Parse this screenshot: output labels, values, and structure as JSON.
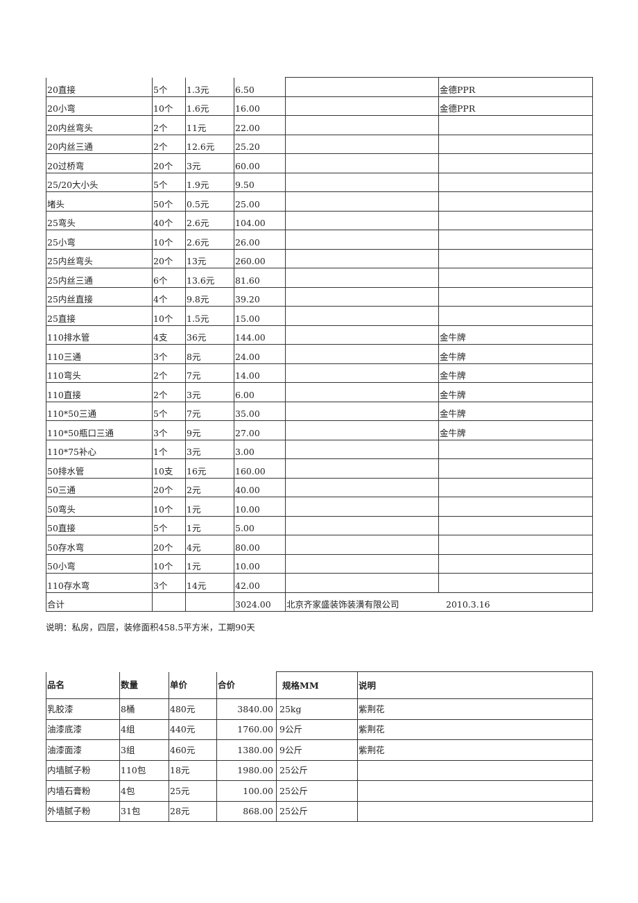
{
  "table1": {
    "rows": [
      [
        "20直接",
        "5个",
        "1.3元",
        "6.50",
        "",
        "金德PPR"
      ],
      [
        "20小弯",
        "10个",
        "1.6元",
        "16.00",
        "",
        "金德PPR"
      ],
      [
        "20内丝弯头",
        "2个",
        "11元",
        "22.00",
        "",
        ""
      ],
      [
        "20内丝三通",
        "2个",
        "12.6元",
        "25.20",
        "",
        ""
      ],
      [
        "20过桥弯",
        "20个",
        "3元",
        "60.00",
        "",
        ""
      ],
      [
        "25/20大小头",
        "5个",
        "1.9元",
        "9.50",
        "",
        ""
      ],
      [
        "堵头",
        "50个",
        "0.5元",
        "25.00",
        "",
        ""
      ],
      [
        "25弯头",
        "40个",
        "2.6元",
        "104.00",
        "",
        ""
      ],
      [
        "25小弯",
        "10个",
        "2.6元",
        "26.00",
        "",
        ""
      ],
      [
        "25内丝弯头",
        "20个",
        "13元",
        "260.00",
        "",
        ""
      ],
      [
        "25内丝三通",
        "6个",
        "13.6元",
        "81.60",
        "",
        ""
      ],
      [
        "25内丝直接",
        "4个",
        "9.8元",
        "39.20",
        "",
        ""
      ],
      [
        "25直接",
        "10个",
        "1.5元",
        "15.00",
        "",
        ""
      ],
      [
        "110排水管",
        "4支",
        "36元",
        "144.00",
        "",
        "金牛牌"
      ],
      [
        "110三通",
        "3个",
        "8元",
        "24.00",
        "",
        "金牛牌"
      ],
      [
        "110弯头",
        "2个",
        "7元",
        "14.00",
        "",
        "金牛牌"
      ],
      [
        "110直接",
        "2个",
        "3元",
        "6.00",
        "",
        "金牛牌"
      ],
      [
        "110*50三通",
        "5个",
        "7元",
        "35.00",
        "",
        "金牛牌"
      ],
      [
        "110*50瓶口三通",
        "3个",
        "9元",
        "27.00",
        "",
        "金牛牌"
      ],
      [
        "110*75补心",
        "1个",
        "3元",
        "3.00",
        "",
        ""
      ],
      [
        "50排水管",
        "10支",
        "16元",
        "160.00",
        "",
        ""
      ],
      [
        "50三通",
        "20个",
        "2元",
        "40.00",
        "",
        ""
      ],
      [
        "50弯头",
        "10个",
        "1元",
        "10.00",
        "",
        ""
      ],
      [
        "50直接",
        "5个",
        "1元",
        "5.00",
        "",
        ""
      ],
      [
        "50存水弯",
        "20个",
        "4元",
        "80.00",
        "",
        ""
      ],
      [
        "50小弯",
        "10个",
        "1元",
        "10.00",
        "",
        ""
      ],
      [
        "110存水弯",
        "3个",
        "14元",
        "42.00",
        "",
        ""
      ]
    ],
    "total": {
      "label": "合计",
      "amount": "3024.00",
      "company": "北京齐家盛装饰装潢有限公司",
      "date": "2010.3.16"
    }
  },
  "note": "说明：私房，四层，装修面积458.5平方米，工期90天",
  "table2": {
    "headers": [
      "品名",
      "数量",
      "单价",
      "合价",
      "规格MM",
      "说明"
    ],
    "rows": [
      [
        "乳胶漆",
        "8桶",
        "480元",
        "3840.00",
        "25kg",
        "紫荆花"
      ],
      [
        "油漆底漆",
        "4组",
        "440元",
        "1760.00",
        "9公斤",
        "紫荆花"
      ],
      [
        "油漆面漆",
        "3组",
        "460元",
        "1380.00",
        "9公斤",
        "紫荆花"
      ],
      [
        "内墙腻子粉",
        "110包",
        "18元",
        "1980.00",
        "25公斤",
        ""
      ],
      [
        "内墙石膏粉",
        "4包",
        "25元",
        "100.00",
        "25公斤",
        ""
      ],
      [
        "外墙腻子粉",
        "31包",
        "28元",
        "868.00",
        "25公斤",
        ""
      ]
    ]
  }
}
